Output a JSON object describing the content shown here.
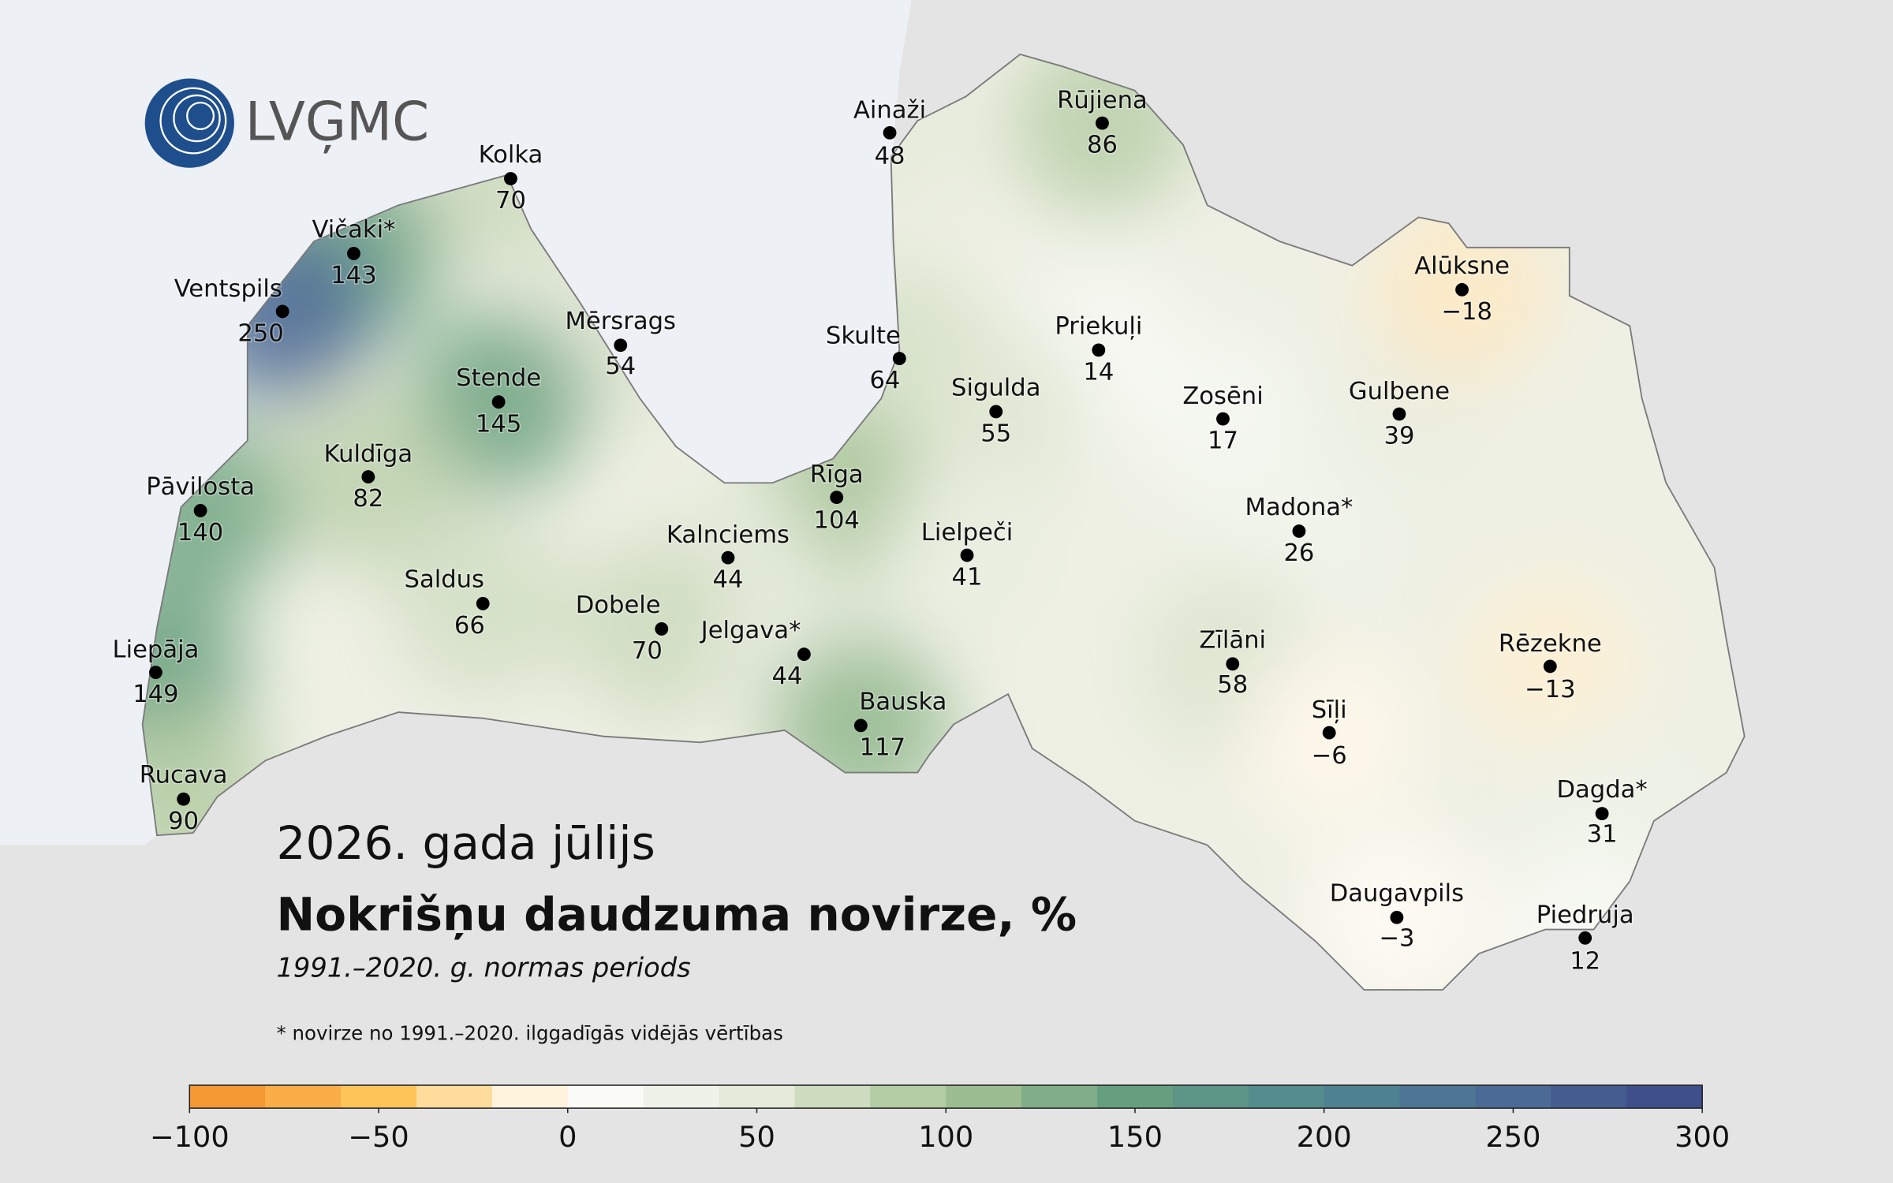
{
  "logo": "LVĢMC",
  "title": "2026. gada jūlijs",
  "heading": "Nokrišņu daudzuma novirze, %",
  "subtitle": "1991.–2020. g. normas periods",
  "footnote": "* novirze no 1991.–2020. ilggadīgās vidējās vērtības",
  "stations": {
    "names": [
      "Ainaži",
      "Rūjiena",
      "Kolka",
      "Vičaki*",
      "Ventspils",
      "Mērsrags",
      "Skulte",
      "Stende",
      "Priekuļi",
      "Sigulda",
      "Zosēni",
      "Gulbene",
      "Alūksne",
      "Kuldīga",
      "Pāvilosta",
      "Rīga",
      "Madona*",
      "Kalnciems",
      "Lielpeči",
      "Saldus",
      "Dobele",
      "Jelgava*",
      "Liepāja",
      "Zīlāni",
      "Rēzekne",
      "Bauska",
      "Sīļi",
      "Rucava",
      "Dagda*",
      "Daugavpils",
      "Piedruja"
    ],
    "values": [
      48,
      86,
      70,
      143,
      250,
      54,
      64,
      145,
      14,
      55,
      17,
      39,
      -18,
      82,
      140,
      104,
      26,
      44,
      41,
      66,
      70,
      44,
      149,
      58,
      -13,
      117,
      -6,
      90,
      31,
      -3,
      12
    ],
    "value_labels": [
      "48",
      "86",
      "70",
      "143",
      "250",
      "54",
      "64",
      "145",
      "14",
      "55",
      "17",
      "39",
      "−18",
      "82",
      "140",
      "104",
      "26",
      "44",
      "41",
      "66",
      "70",
      "44",
      "149",
      "58",
      "−13",
      "117",
      "−6",
      "90",
      "31",
      "−3",
      "12"
    ]
  },
  "colorbar": {
    "lim": [
      -100,
      300
    ],
    "ticks": [
      {
        "value": -100,
        "label": "−100"
      },
      {
        "value": -50,
        "label": "−50"
      },
      0,
      50,
      100,
      150,
      200,
      250,
      300
    ],
    "colors": [
      "#f28e2b",
      "#fdc45a",
      "#ffffff",
      "#e5ead9",
      "#a8c596",
      "#669f7f",
      "#4f8890",
      "#4c6a96",
      "#3b4888"
    ]
  }
}
